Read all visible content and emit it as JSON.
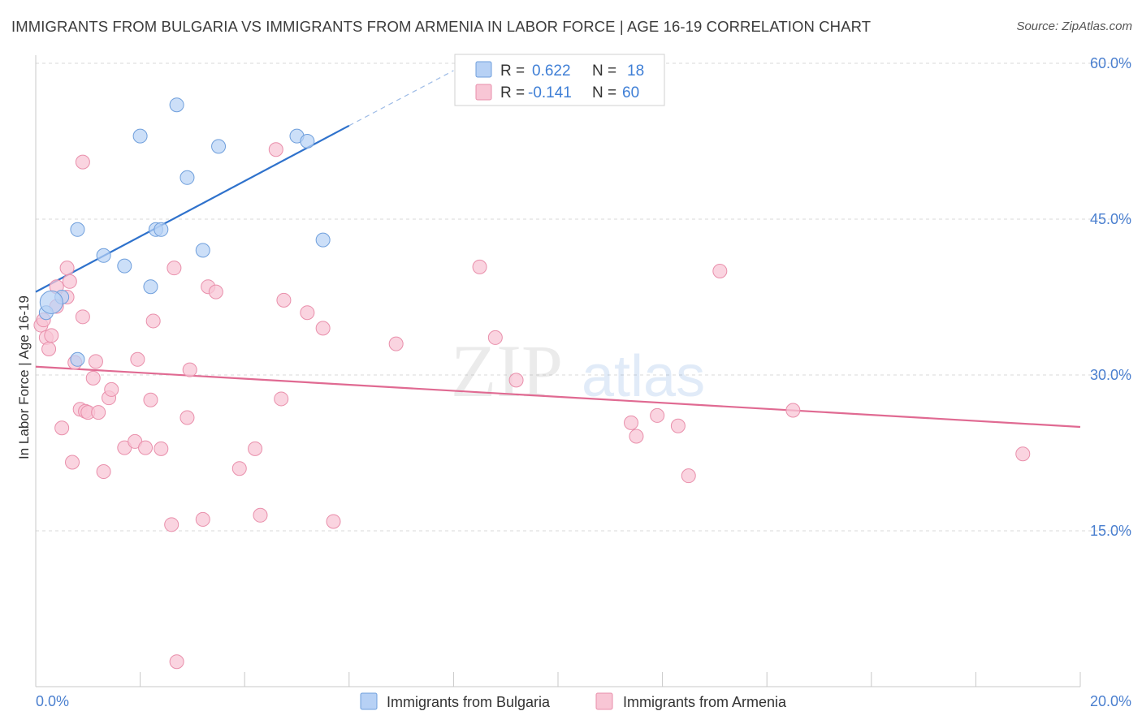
{
  "title": "IMMIGRANTS FROM BULGARIA VS IMMIGRANTS FROM ARMENIA IN LABOR FORCE | AGE 16-19 CORRELATION CHART",
  "source": "Source: ZipAtlas.com",
  "watermark": {
    "zip": "ZIP",
    "atlas": "atlas"
  },
  "colors": {
    "bulgaria_fill": "#b7d1f5",
    "bulgaria_stroke": "#6f9fdc",
    "bulgaria_line": "#2f72cc",
    "armenia_fill": "#f8c6d5",
    "armenia_stroke": "#e98fab",
    "armenia_line": "#e06a92",
    "tick_text": "#4a7fcf",
    "grid": "#d9d9d9"
  },
  "legend": {
    "rows": [
      {
        "r_label": "R =",
        "r_value": "0.622",
        "n_label": "N =",
        "n_value": "18"
      },
      {
        "r_label": "R =",
        "r_value": "-0.141",
        "n_label": "N =",
        "n_value": "60"
      }
    ]
  },
  "chart_data": {
    "type": "scatter",
    "title": "IMMIGRANTS FROM BULGARIA VS IMMIGRANTS FROM ARMENIA IN LABOR FORCE | AGE 16-19 CORRELATION CHART",
    "xlabel": "",
    "ylabel": "In Labor Force | Age 16-19",
    "xlim": [
      0,
      20
    ],
    "ylim": [
      0,
      60
    ],
    "x_tick_labels": [
      "0.0%",
      "20.0%"
    ],
    "y_ticks": [
      15,
      30,
      45,
      60
    ],
    "y_tick_labels": [
      "15.0%",
      "30.0%",
      "45.0%",
      "60.0%"
    ],
    "grid": true,
    "legend_position": "top-center",
    "series": [
      {
        "name": "Immigrants from Bulgaria",
        "r": 0.622,
        "n": 18,
        "trend": {
          "x0": 0.0,
          "y0": 38.0,
          "x1": 6.0,
          "y1": 54.0,
          "dashed_to_x": 8.0,
          "dashed_to_y": 59.3
        },
        "points": [
          [
            0.2,
            36.0
          ],
          [
            0.5,
            37.5
          ],
          [
            0.8,
            31.5
          ],
          [
            0.8,
            44.0
          ],
          [
            1.3,
            41.5
          ],
          [
            1.7,
            40.5
          ],
          [
            2.0,
            53.0
          ],
          [
            2.2,
            38.5
          ],
          [
            2.3,
            44.0
          ],
          [
            2.4,
            44.0
          ],
          [
            2.7,
            56.0
          ],
          [
            2.9,
            49.0
          ],
          [
            3.2,
            42.0
          ],
          [
            3.5,
            52.0
          ],
          [
            5.0,
            53.0
          ],
          [
            5.2,
            52.5
          ],
          [
            5.5,
            43.0
          ],
          [
            0.3,
            37.0
          ]
        ]
      },
      {
        "name": "Immigrants from Armenia",
        "r": -0.141,
        "n": 60,
        "trend": {
          "x0": 0.0,
          "y0": 30.8,
          "x1": 20.0,
          "y1": 25.0
        },
        "points": [
          [
            0.1,
            34.8
          ],
          [
            0.2,
            33.6
          ],
          [
            0.25,
            32.5
          ],
          [
            0.3,
            33.8
          ],
          [
            0.4,
            38.5
          ],
          [
            0.4,
            36.6
          ],
          [
            0.5,
            24.9
          ],
          [
            0.6,
            37.5
          ],
          [
            0.6,
            40.3
          ],
          [
            0.65,
            39.0
          ],
          [
            0.7,
            21.6
          ],
          [
            0.75,
            31.2
          ],
          [
            0.85,
            26.7
          ],
          [
            0.9,
            50.5
          ],
          [
            0.9,
            35.6
          ],
          [
            0.95,
            26.5
          ],
          [
            1.0,
            26.4
          ],
          [
            1.1,
            29.7
          ],
          [
            1.15,
            31.3
          ],
          [
            1.2,
            26.4
          ],
          [
            1.3,
            20.7
          ],
          [
            1.4,
            27.8
          ],
          [
            1.45,
            28.6
          ],
          [
            1.7,
            23.0
          ],
          [
            1.9,
            23.6
          ],
          [
            1.95,
            31.5
          ],
          [
            2.1,
            23.0
          ],
          [
            2.2,
            27.6
          ],
          [
            2.25,
            35.2
          ],
          [
            2.4,
            22.9
          ],
          [
            2.6,
            15.6
          ],
          [
            2.65,
            40.3
          ],
          [
            2.7,
            2.4
          ],
          [
            2.9,
            25.9
          ],
          [
            2.95,
            30.5
          ],
          [
            3.2,
            16.1
          ],
          [
            3.3,
            38.5
          ],
          [
            3.45,
            38.0
          ],
          [
            3.9,
            21.0
          ],
          [
            4.2,
            22.9
          ],
          [
            4.3,
            16.5
          ],
          [
            4.6,
            51.7
          ],
          [
            4.7,
            27.7
          ],
          [
            4.75,
            37.2
          ],
          [
            5.2,
            36.0
          ],
          [
            5.5,
            34.5
          ],
          [
            5.7,
            15.9
          ],
          [
            6.9,
            33.0
          ],
          [
            8.5,
            40.4
          ],
          [
            8.8,
            33.6
          ],
          [
            9.2,
            29.5
          ],
          [
            11.4,
            25.4
          ],
          [
            11.5,
            24.1
          ],
          [
            11.9,
            26.1
          ],
          [
            12.3,
            25.1
          ],
          [
            12.5,
            20.3
          ],
          [
            13.1,
            40.0
          ],
          [
            14.5,
            26.6
          ],
          [
            18.9,
            22.4
          ],
          [
            0.15,
            35.3
          ]
        ]
      }
    ]
  }
}
